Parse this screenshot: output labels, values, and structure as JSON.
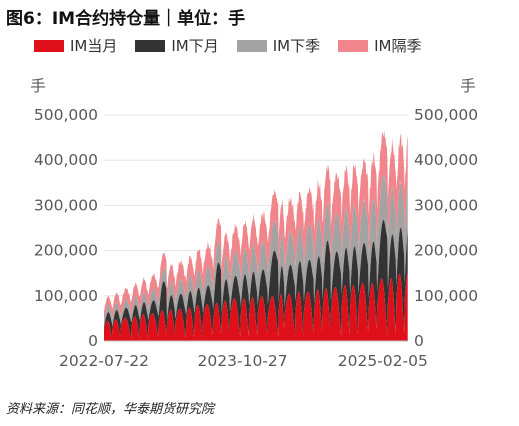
{
  "title": "图6：IM合约持仓量｜单位：手",
  "source": "资料来源：同花顺，华泰期货研究院",
  "colors": {
    "current": "#e0101a",
    "next": "#333333",
    "quarter": "#a3a3a3",
    "next_quarter": "#f0868b"
  },
  "chart_data": {
    "type": "area",
    "stacked": true,
    "y_unit_left": "手",
    "y_unit_right": "手",
    "ylim": [
      0,
      500000
    ],
    "y_ticks": [
      "0",
      "100,000",
      "200,000",
      "300,000",
      "400,000",
      "500,000"
    ],
    "x_tick_labels": [
      "2022-07-22",
      "2023-10-27",
      "2025-02-05"
    ],
    "x_start": "2022-07-22",
    "x_end": "2025-04-30",
    "grid": true,
    "legend_position": "top",
    "series": [
      {
        "name": "IM当月",
        "color": "#e0101a"
      },
      {
        "name": "IM下月",
        "color": "#333333"
      },
      {
        "name": "IM下季",
        "color": "#a3a3a3"
      },
      {
        "name": "IM隔季",
        "color": "#f0868b"
      }
    ],
    "monthly_cycle": {
      "start_dates": [
        "2022-07-22",
        "2022-08-19",
        "2022-09-16",
        "2022-10-21",
        "2022-11-18",
        "2022-12-16",
        "2023-01-20",
        "2023-02-17",
        "2023-03-17",
        "2023-04-21",
        "2023-05-19",
        "2023-06-16",
        "2023-07-21",
        "2023-08-18",
        "2023-09-15",
        "2023-10-20",
        "2023-11-17",
        "2023-12-15",
        "2024-01-19",
        "2024-02-23",
        "2024-03-15",
        "2024-04-19",
        "2024-05-17",
        "2024-06-21",
        "2024-07-19",
        "2024-08-16",
        "2024-09-20",
        "2024-10-18",
        "2024-11-15",
        "2024-12-20",
        "2025-01-17",
        "2025-02-21",
        "2025-03-21",
        "2025-04-18"
      ],
      "current_peak": [
        45000,
        48000,
        52000,
        55000,
        60000,
        62000,
        68000,
        70000,
        72000,
        75000,
        80000,
        82000,
        85000,
        90000,
        95000,
        95000,
        98000,
        100000,
        100000,
        105000,
        105000,
        110000,
        110000,
        115000,
        118000,
        120000,
        125000,
        125000,
        130000,
        130000,
        140000,
        140000,
        150000,
        150000
      ],
      "next_peak": [
        35000,
        38000,
        40000,
        45000,
        48000,
        52000,
        110000,
        58000,
        60000,
        65000,
        70000,
        75000,
        150000,
        85000,
        90000,
        95000,
        100000,
        105000,
        170000,
        110000,
        115000,
        120000,
        125000,
        130000,
        180000,
        140000,
        145000,
        150000,
        155000,
        160000,
        220000,
        170000,
        180000,
        190000
      ],
      "quarter_level": [
        15000,
        16000,
        18000,
        20000,
        22000,
        25000,
        28000,
        30000,
        32000,
        35000,
        40000,
        42000,
        45000,
        50000,
        55000,
        58000,
        60000,
        62000,
        65000,
        70000,
        72000,
        75000,
        78000,
        80000,
        82000,
        85000,
        88000,
        90000,
        92000,
        95000,
        98000,
        100000,
        100000,
        105000
      ],
      "next_quarter_level": [
        20000,
        22000,
        25000,
        28000,
        30000,
        32000,
        35000,
        38000,
        40000,
        42000,
        45000,
        48000,
        50000,
        52000,
        55000,
        58000,
        60000,
        62000,
        65000,
        70000,
        72000,
        75000,
        78000,
        80000,
        82000,
        85000,
        88000,
        90000,
        90000,
        92000,
        95000,
        98000,
        100000,
        100000
      ]
    }
  }
}
